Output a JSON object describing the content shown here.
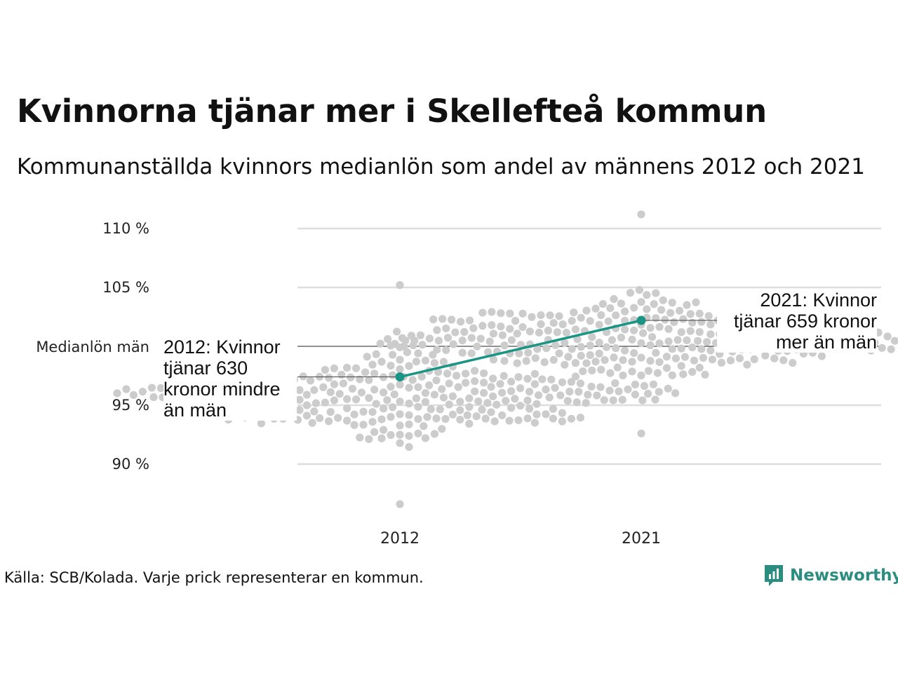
{
  "title": "Kvinnorna tjänar mer i Skellefteå kommun",
  "subtitle": "Kommunanställda kvinnors medianlön som andel av männens 2012 och 2021",
  "footer": "Källa: SCB/Kolada. Varje prick representerar en kommun.",
  "brand": "Newsworthy",
  "colors": {
    "dots": "#cccccc",
    "highlight": "#1a9585",
    "grid": "#dedede",
    "reference": "#222222",
    "brand": "#2a8d80"
  },
  "chart_data": {
    "type": "scatter",
    "subtype": "beeswarm",
    "categories": [
      "2012",
      "2021"
    ],
    "ylabel": "",
    "yticks": [
      {
        "value": 90,
        "label": "90 %"
      },
      {
        "value": 95,
        "label": "95 %"
      },
      {
        "value": 105,
        "label": "105 %"
      },
      {
        "value": 110,
        "label": "110 %"
      }
    ],
    "reference_line": {
      "value": 100,
      "label": "Medianlön män"
    },
    "ylim": [
      86,
      112
    ],
    "grid": true,
    "highlight": {
      "values": [
        97.4,
        102.2
      ],
      "annotations": [
        "2012: Kvinnor tjänar 630 kronor mindre än män",
        "2021: Kvinnor tjänar 659 kronor mer än män"
      ]
    },
    "distribution": {
      "2012": {
        "count": 290,
        "median": 95.8,
        "spread": 2.4,
        "min": 86.6,
        "max": 105.2
      },
      "2021": {
        "count": 290,
        "median": 100.6,
        "spread": 2.3,
        "min": 92.6,
        "max": 111.2
      }
    }
  }
}
